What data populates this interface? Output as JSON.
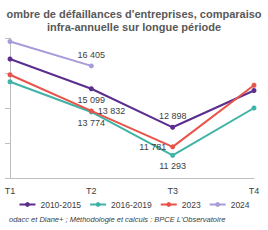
{
  "chart_data": {
    "type": "line",
    "title": "ombre de défaillances d'entreprises, comparaiso\ninfra-annuelle sur longue période",
    "source": "odacc et Diane+ ; Méthodologie et calculs : BPCE L'Observatoire",
    "categories": [
      "T1",
      "T2",
      "T3",
      "T4"
    ],
    "ylim": [
      10000,
      18000
    ],
    "yticks": [
      10000,
      12000,
      14000,
      16000,
      18000
    ],
    "grid": false,
    "tick_labels": "x",
    "legend": "bottom",
    "data_labels": true,
    "marker": "circle",
    "series": [
      {
        "name": "2010-2015",
        "color": "#5b2d8e",
        "values": [
          16800,
          15099,
          12898,
          15000
        ],
        "value_labels": [
          null,
          "15 099",
          "12 898",
          null
        ]
      },
      {
        "name": "2016-2019",
        "color": "#3fb3a6",
        "values": [
          15500,
          13774,
          11293,
          14000
        ],
        "value_labels": [
          null,
          "13 774",
          "11 293",
          null
        ]
      },
      {
        "name": "2023",
        "color": "#e8534a",
        "values": [
          15900,
          13832,
          11781,
          15300
        ],
        "value_labels": [
          null,
          "13 832",
          "11 781",
          null
        ]
      },
      {
        "name": "2024",
        "color": "#a99ad8",
        "values": [
          17800,
          16405,
          null,
          null
        ],
        "value_labels": [
          null,
          "16 405",
          null,
          null
        ]
      }
    ]
  }
}
